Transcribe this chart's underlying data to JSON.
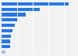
{
  "values": [
    860,
    490,
    310,
    215,
    165,
    140,
    125,
    115,
    105,
    48
  ],
  "bar_color": "#2878E4",
  "last_bar_color": "#A0BFEE",
  "background_color": "#f2f2f2",
  "grid_color": "#ffffff",
  "xlim": [
    0,
    950
  ]
}
